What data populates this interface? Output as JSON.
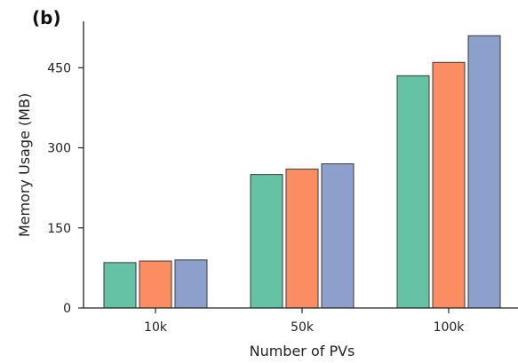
{
  "chart_data": {
    "type": "bar",
    "panel_label": "(b)",
    "title": "",
    "xlabel": "Number of PVs",
    "ylabel": "Memory Usage (MB)",
    "categories": [
      "10k",
      "50k",
      "100k"
    ],
    "ylim": [
      0,
      512
    ],
    "yticks": [
      0,
      150,
      300,
      450
    ],
    "grid": false,
    "legend": "none",
    "series": [
      {
        "color": "#66c2a5",
        "values": [
          85,
          250,
          435
        ]
      },
      {
        "color": "#fc8d62",
        "values": [
          88,
          260,
          460
        ]
      },
      {
        "color": "#8da0cb",
        "values": [
          90,
          270,
          510
        ]
      }
    ]
  }
}
